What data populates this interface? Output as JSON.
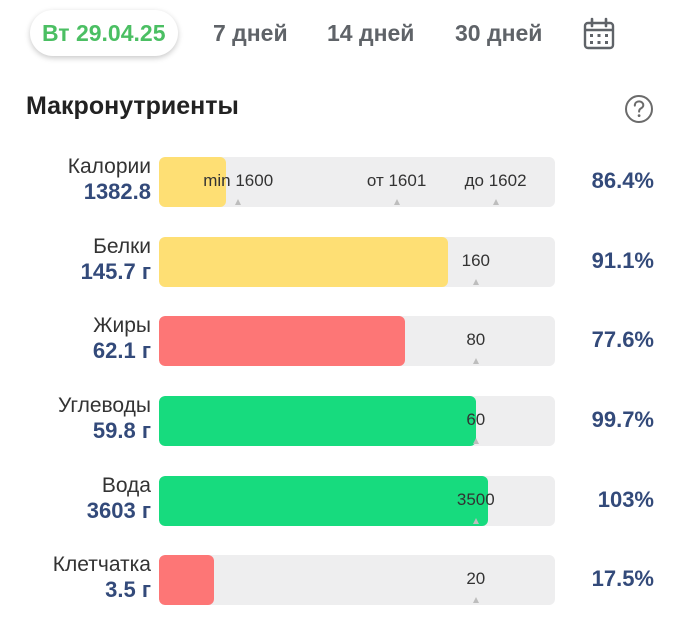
{
  "tabs": {
    "active": "Вт 29.04.25",
    "t7": "7 дней",
    "t14": "14 дней",
    "t30": "30 дней"
  },
  "section": {
    "title": "Макронутриенты",
    "help_icon": "question-circle-icon",
    "calendar_icon": "calendar-icon"
  },
  "colors": {
    "yellow": "#fedf74",
    "red": "#fd7676",
    "green": "#17db7e",
    "track": "#eeeeef",
    "accent_green": "#4bbf63",
    "value_blue": "#334a7a"
  },
  "rows": [
    {
      "name": "Калории",
      "value": "1382.8",
      "percent": "86.4%",
      "fill_fraction": 0.17,
      "color": "yellow",
      "marks": [
        {
          "label": "min 1600",
          "pos": 0.2
        },
        {
          "label": "от 1601",
          "pos": 0.6
        },
        {
          "label": "до 1602",
          "pos": 0.85
        }
      ]
    },
    {
      "name": "Белки",
      "value": "145.7 г",
      "percent": "91.1%",
      "fill_fraction": 0.73,
      "color": "yellow",
      "marks": [
        {
          "label": "160",
          "pos": 0.8
        }
      ]
    },
    {
      "name": "Жиры",
      "value": "62.1 г",
      "percent": "77.6%",
      "fill_fraction": 0.62,
      "color": "red",
      "marks": [
        {
          "label": "80",
          "pos": 0.8
        }
      ]
    },
    {
      "name": "Углеводы",
      "value": "59.8 г",
      "percent": "99.7%",
      "fill_fraction": 0.8,
      "color": "green",
      "marks": [
        {
          "label": "60",
          "pos": 0.8
        }
      ]
    },
    {
      "name": "Вода",
      "value": "3603 г",
      "percent": "103%",
      "fill_fraction": 0.83,
      "color": "green",
      "marks": [
        {
          "label": "3500",
          "pos": 0.8
        }
      ]
    },
    {
      "name": "Клетчатка",
      "value": "3.5 г",
      "percent": "17.5%",
      "fill_fraction": 0.14,
      "color": "red",
      "marks": [
        {
          "label": "20",
          "pos": 0.8
        }
      ]
    }
  ]
}
